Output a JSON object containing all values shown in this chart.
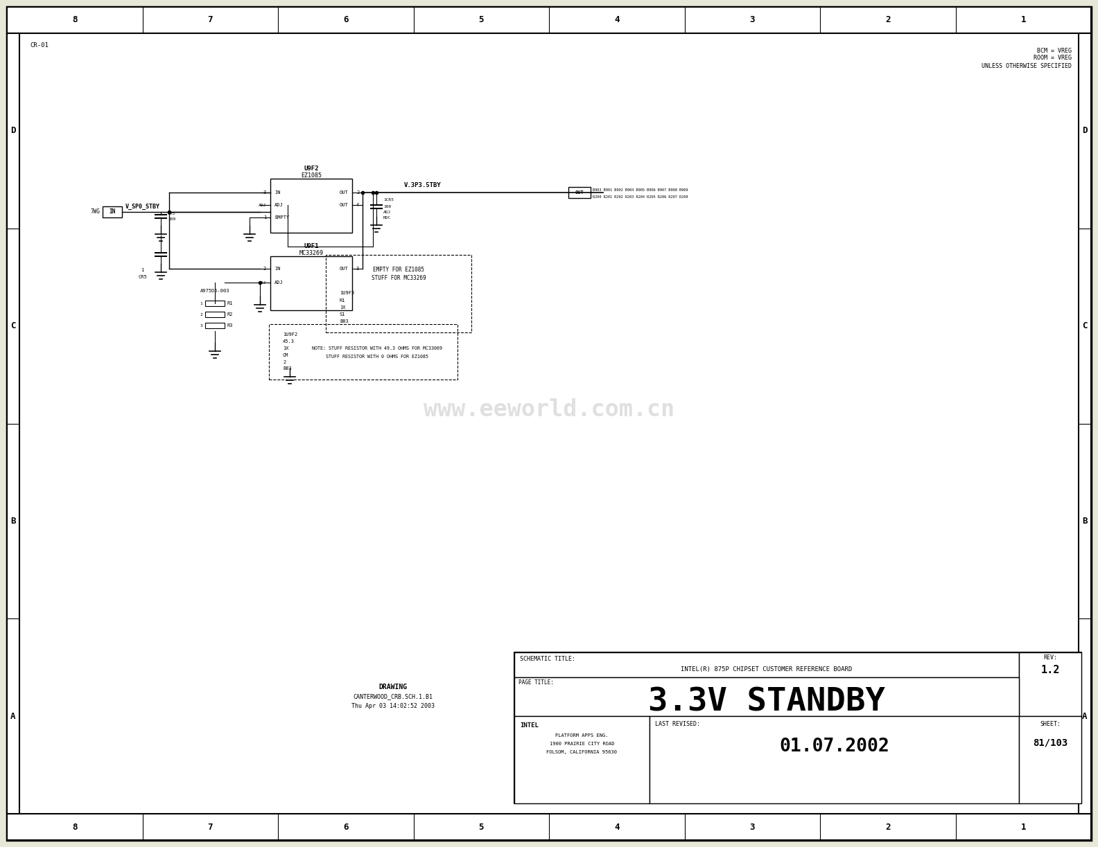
{
  "bg_color": "#e8e8d8",
  "paper_color": "#ffffff",
  "line_color": "#000000",
  "title_block": {
    "schematic_title": "SCHEMATIC TITLE:",
    "company": "INTEL(R) 875P CHIPSET CUSTOMER REFERENCE BOARD",
    "page_title_label": "PAGE TITLE:",
    "page_title": "3.3V STANDBY",
    "rev_label": "REV:",
    "rev_value": "1.2",
    "intel_label": "INTEL",
    "platform_label": "PLATFORM APPS ENG.",
    "address1": "1900 PRAIRIE CITY ROAD",
    "address2": "FOLSOM, CALIFORNIA 95630",
    "last_revised_label": "LAST REVISED:",
    "last_revised_date": "01.07.2002",
    "sheet_label": "SHEET:",
    "sheet_value": "81/103"
  },
  "drawing_block": {
    "label": "DRAWING",
    "filename": "CANTERWOOD_CRB.SCH.1.B1",
    "date": "Thu Apr 03 14:02:52 2003"
  },
  "corner_label": "CR-01",
  "bcm_notes": [
    "BCM = VREG",
    "ROOM = VREG",
    "UNLESS OTHERWISE SPECIFIED"
  ],
  "col_labels": [
    "8",
    "7",
    "6",
    "5",
    "4",
    "3",
    "2",
    "1"
  ],
  "row_labels": [
    "D",
    "C",
    "B",
    "A"
  ],
  "watermark": "www.eeworld.com.cn",
  "watermark_color": "#bbbbbb",
  "circuit": {
    "u9f2_ref": "U9F2",
    "u9f2_val": "EZ1085",
    "u9f1_ref": "U9F1",
    "u9f1_val": "MC33269",
    "v_sp0_stby": "V_SP0_STBY",
    "v_3p3_5tby": "V.3P3.5TBY"
  }
}
